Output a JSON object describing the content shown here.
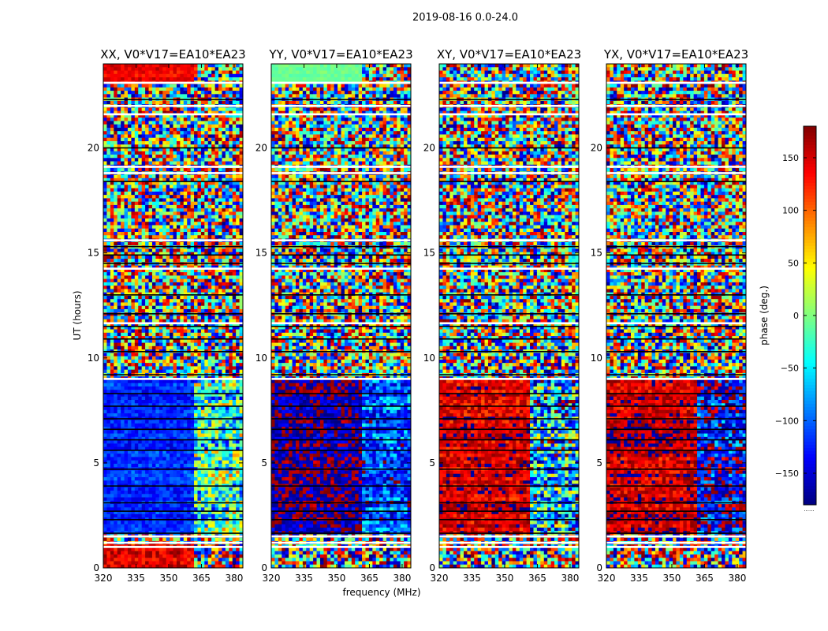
{
  "figure": {
    "suptitle": "2019-08-16 0.0-24.0"
  },
  "chart_data": {
    "type": "heatmap",
    "suptitle": "2019-08-16 0.0-24.0",
    "xlabel": "frequency (MHz)",
    "ylabel": "UT (hours)",
    "xlim": [
      320,
      384
    ],
    "ylim": [
      0,
      24
    ],
    "xticks": [
      320,
      335,
      350,
      365,
      380
    ],
    "yticks": [
      0,
      5,
      10,
      15,
      20
    ],
    "colormap": "jet",
    "colorbar": {
      "label": "phase (deg.)",
      "range": [
        -180,
        180
      ],
      "ticks": [
        150,
        100,
        50,
        0,
        -50,
        -100,
        -150
      ],
      "tick_labels": [
        "150",
        "100",
        "50",
        "0",
        "−50",
        "−100",
        "−150"
      ],
      "footnote": "......"
    },
    "panels": [
      {
        "title": "XX, V0*V17=EA10*EA23",
        "regions": [
          {
            "t": [
              0,
              1.1
            ],
            "f": [
              320,
              361
            ],
            "phase": 145,
            "spread": 30
          },
          {
            "t": [
              1.6,
              8.9
            ],
            "f": [
              320,
              361
            ],
            "phase": -120,
            "spread": 25
          },
          {
            "t": [
              1.6,
              8.9
            ],
            "f": [
              361,
              384
            ],
            "phase": -20,
            "spread": 90
          },
          {
            "t": [
              23.1,
              24
            ],
            "f": [
              320,
              361
            ],
            "phase": 140,
            "spread": 20
          }
        ]
      },
      {
        "title": "YY, V0*V17=EA10*EA23",
        "regions": [
          {
            "t": [
              1.6,
              8.9
            ],
            "f": [
              320,
              361
            ],
            "phase": -170,
            "spread": 35
          },
          {
            "t": [
              1.6,
              8.9
            ],
            "f": [
              361,
              384
            ],
            "phase": -110,
            "spread": 60
          },
          {
            "t": [
              23.1,
              24
            ],
            "f": [
              320,
              361
            ],
            "phase": -5,
            "spread": 10
          }
        ]
      },
      {
        "title": "XY, V0*V17=EA10*EA23",
        "regions": [
          {
            "t": [
              1.6,
              8.9
            ],
            "f": [
              320,
              361
            ],
            "phase": 150,
            "spread": 35
          },
          {
            "t": [
              1.6,
              8.9
            ],
            "f": [
              361,
              384
            ],
            "phase": -60,
            "spread": 110
          }
        ]
      },
      {
        "title": "YX, V0*V17=EA10*EA23",
        "regions": [
          {
            "t": [
              1.6,
              8.9
            ],
            "f": [
              320,
              361
            ],
            "phase": 155,
            "spread": 35
          },
          {
            "t": [
              1.6,
              8.9
            ],
            "f": [
              361,
              384
            ],
            "phase": -140,
            "spread": 70
          }
        ]
      }
    ],
    "blank_intervals_hours": [
      [
        0.95,
        1.05
      ],
      [
        1.15,
        1.25
      ],
      [
        1.45,
        1.55
      ],
      [
        8.95,
        9.05
      ],
      [
        11.6,
        11.7
      ],
      [
        14.2,
        14.3
      ],
      [
        15.55,
        15.65
      ],
      [
        18.75,
        18.85
      ],
      [
        19.05,
        19.15
      ],
      [
        21.55,
        21.65
      ],
      [
        21.95,
        22.05
      ],
      [
        23.05,
        23.15
      ]
    ],
    "black_line_hours": [
      [
        1.65
      ],
      [
        2.3
      ],
      [
        2.7
      ],
      [
        3.1
      ],
      [
        3.9
      ],
      [
        4.7
      ],
      [
        5.6
      ],
      [
        6.1
      ],
      [
        6.6
      ],
      [
        7.1
      ],
      [
        7.7
      ],
      [
        8.3
      ],
      [
        9.2
      ],
      [
        10.3
      ],
      [
        10.9
      ],
      [
        11.5
      ],
      [
        12.1
      ],
      [
        13.0
      ],
      [
        14.5
      ],
      [
        14.9
      ],
      [
        15.3
      ],
      [
        18.4
      ],
      [
        20.0
      ],
      [
        22.3
      ]
    ]
  }
}
